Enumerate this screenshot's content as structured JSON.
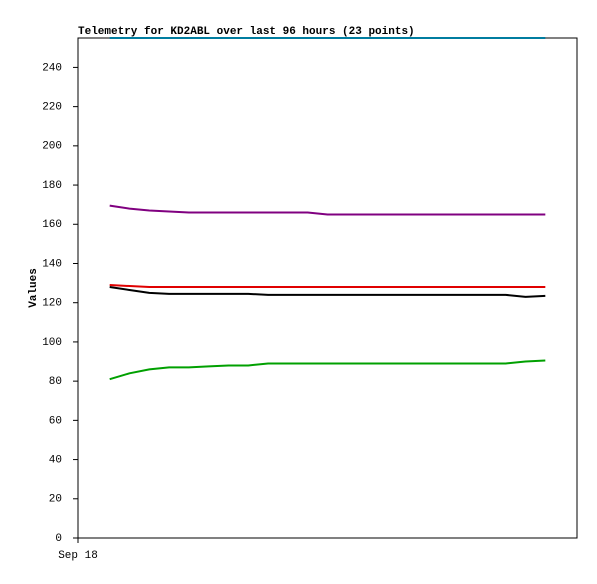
{
  "chart_data": {
    "type": "line",
    "title": "Telemetry for KD2ABL over last 96 hours (23 points)",
    "y_label": "Values",
    "x": [
      0,
      1,
      2,
      3,
      4,
      5,
      6,
      7,
      8,
      9,
      10,
      11,
      12,
      13,
      14,
      15,
      16,
      17,
      18,
      19,
      20,
      21,
      22
    ],
    "xlim": [
      -1.6,
      23.6
    ],
    "xticks": [
      {
        "value": -1.6,
        "label": "Sep 18"
      }
    ],
    "ylim": [
      0,
      255
    ],
    "yticks": [
      0,
      20,
      40,
      60,
      80,
      100,
      120,
      140,
      160,
      180,
      200,
      220,
      240
    ],
    "grid": false,
    "series": [
      {
        "color": "#007da0",
        "values": [
          255,
          255,
          255,
          255,
          255,
          255,
          255,
          255,
          255,
          255,
          255,
          255,
          255,
          255,
          255,
          255,
          255,
          255,
          255,
          255,
          255,
          255,
          255
        ]
      },
      {
        "color": "#800080",
        "values": [
          169.5,
          168,
          167,
          166.5,
          166,
          166,
          166,
          166,
          166,
          166,
          166,
          165,
          165,
          165,
          165,
          165,
          165,
          165,
          165,
          165,
          165,
          165,
          165
        ]
      },
      {
        "color": "#e00000",
        "values": [
          129,
          128.5,
          128,
          128,
          128,
          128,
          128,
          128,
          128,
          128,
          128,
          128,
          128,
          128,
          128,
          128,
          128,
          128,
          128,
          128,
          128,
          128,
          128
        ]
      },
      {
        "color": "#000000",
        "values": [
          128,
          126.5,
          125,
          124.5,
          124.5,
          124.5,
          124.5,
          124.5,
          124,
          124,
          124,
          124,
          124,
          124,
          124,
          124,
          124,
          124,
          124,
          124,
          124,
          123,
          123.5
        ]
      },
      {
        "color": "#00a000",
        "values": [
          81,
          84,
          86,
          87,
          87,
          87.5,
          88,
          88,
          89,
          89,
          89,
          89,
          89,
          89,
          89,
          89,
          89,
          89,
          89,
          89,
          89,
          90,
          90.5
        ]
      }
    ]
  }
}
